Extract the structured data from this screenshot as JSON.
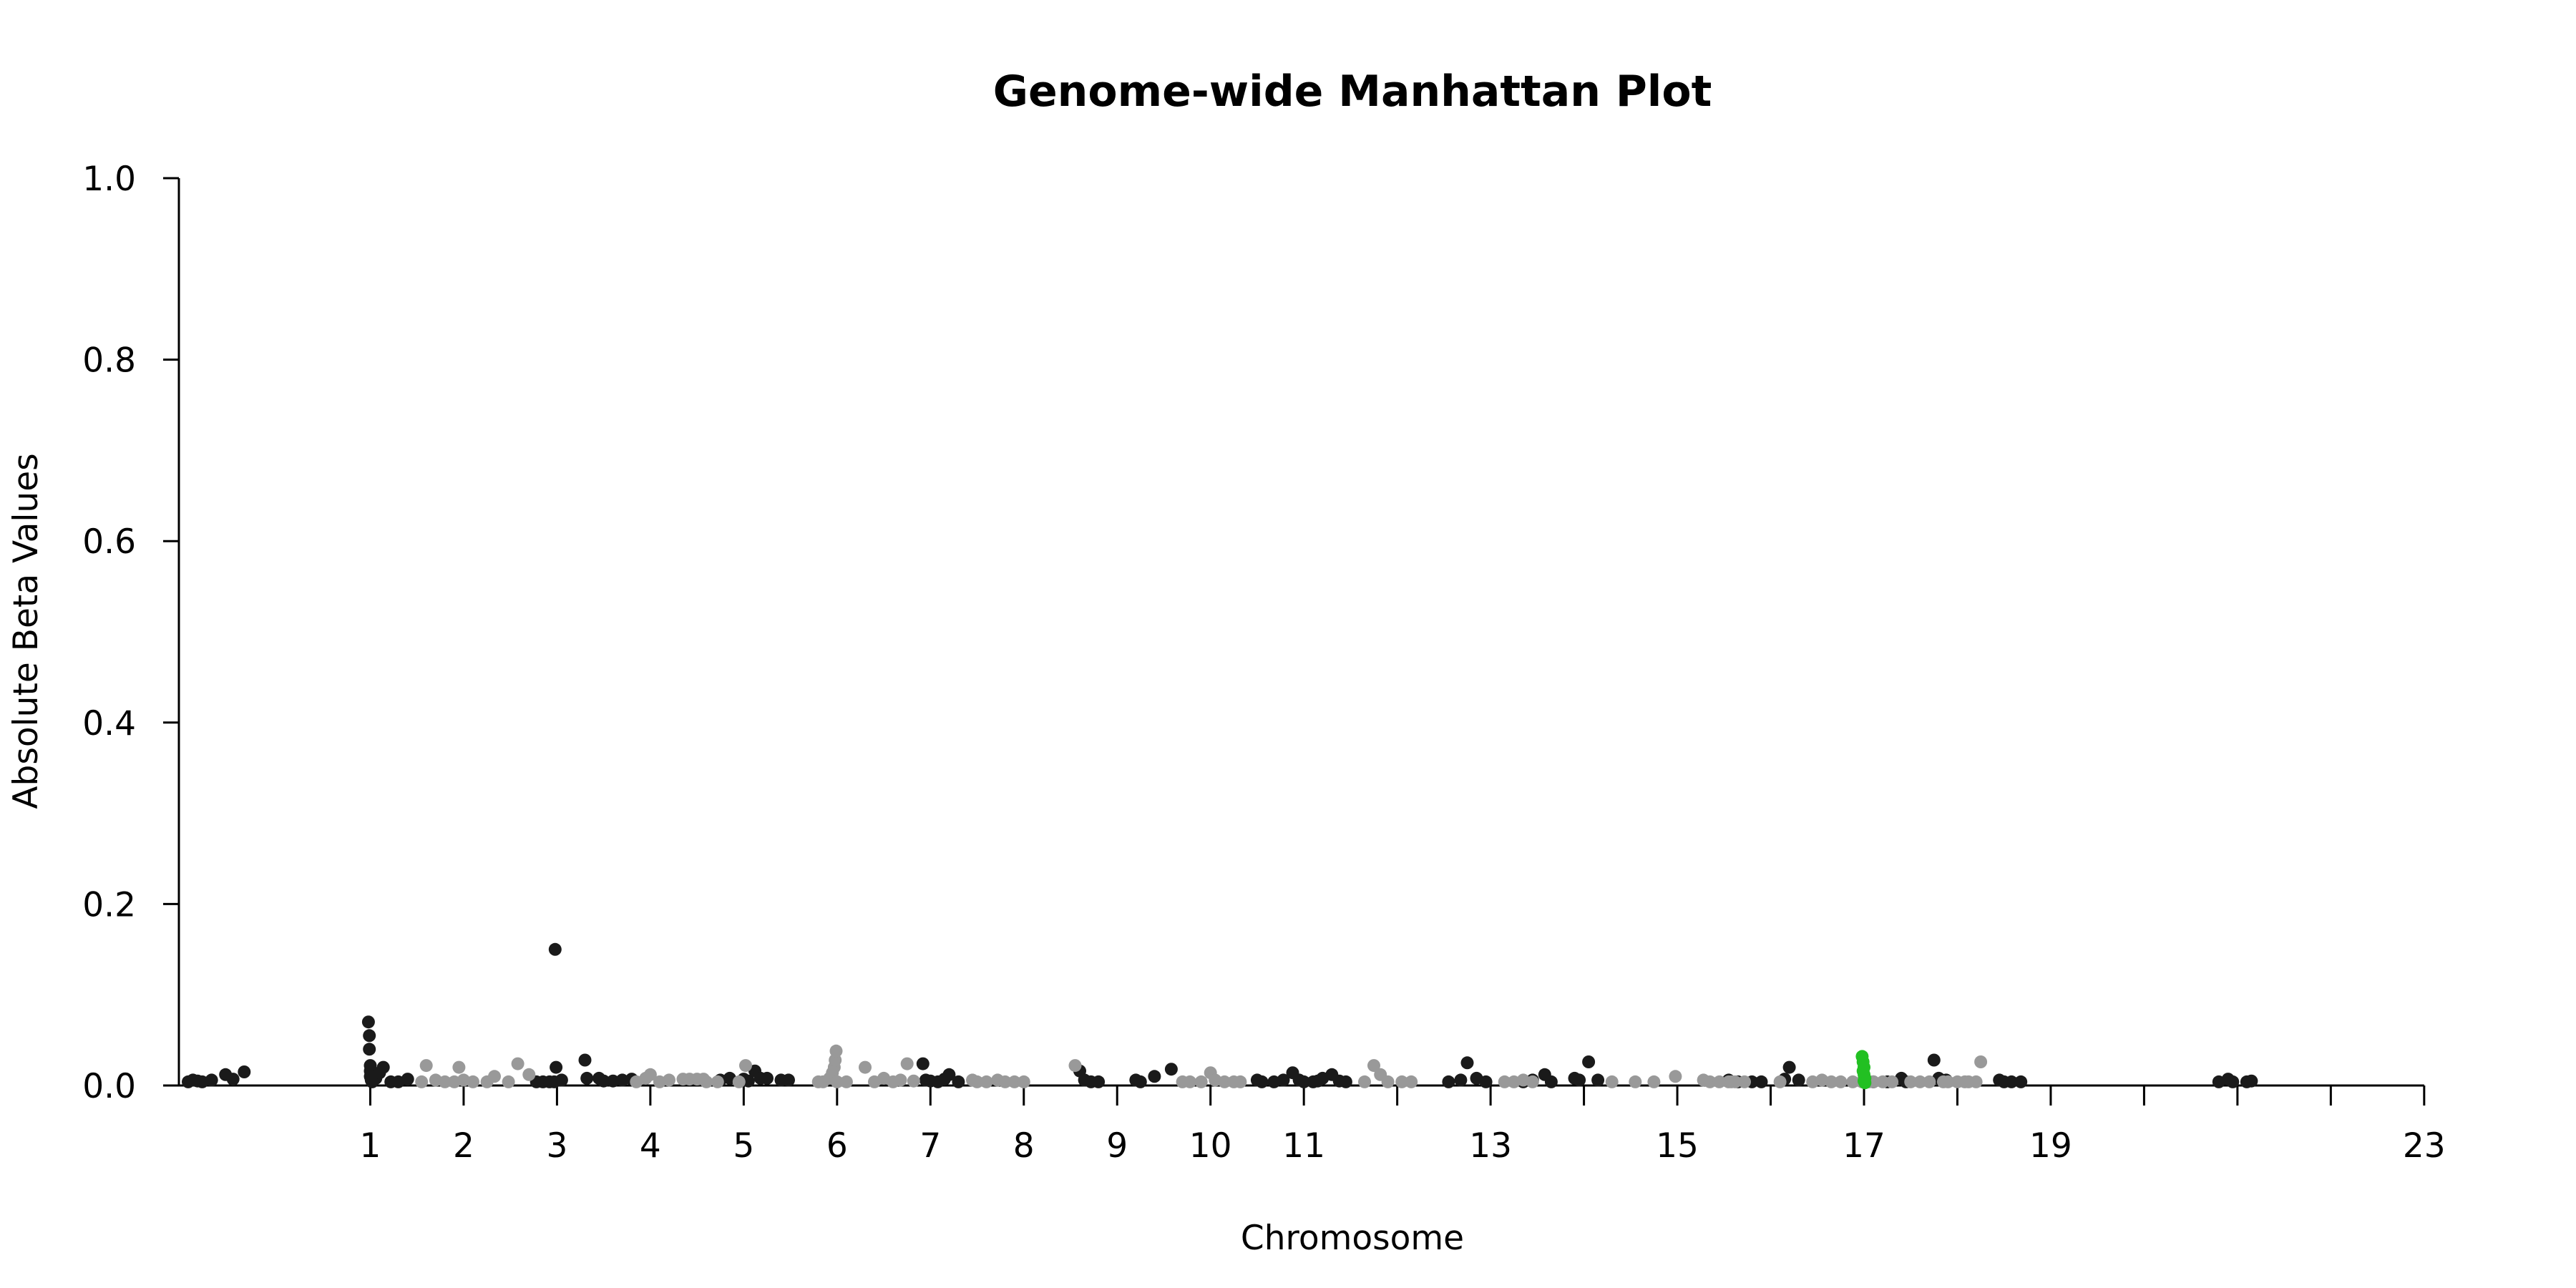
{
  "chart_data": {
    "type": "scatter",
    "title": "Genome-wide Manhattan Plot",
    "xlabel": "Chromosome",
    "ylabel": "Absolute Beta Values",
    "ylim": [
      0,
      1.0
    ],
    "xlim": [
      -1.05,
      23.4
    ],
    "y_ticks": [
      0.0,
      0.2,
      0.4,
      0.6,
      0.8,
      1.0
    ],
    "y_tick_labels": [
      "0.0",
      "0.2",
      "0.4",
      "0.6",
      "0.8",
      "1.0"
    ],
    "x_ticks": [
      {
        "x": 1,
        "label": "1"
      },
      {
        "x": 2,
        "label": "2"
      },
      {
        "x": 3,
        "label": "3"
      },
      {
        "x": 4,
        "label": "4"
      },
      {
        "x": 5,
        "label": "5"
      },
      {
        "x": 6,
        "label": "6"
      },
      {
        "x": 7,
        "label": "7"
      },
      {
        "x": 8,
        "label": "8"
      },
      {
        "x": 9,
        "label": "9"
      },
      {
        "x": 10,
        "label": "10"
      },
      {
        "x": 11,
        "label": "11"
      },
      {
        "x": 12,
        "label": ""
      },
      {
        "x": 13,
        "label": "13"
      },
      {
        "x": 14,
        "label": ""
      },
      {
        "x": 15,
        "label": "15"
      },
      {
        "x": 16,
        "label": ""
      },
      {
        "x": 17,
        "label": "17"
      },
      {
        "x": 18,
        "label": ""
      },
      {
        "x": 19,
        "label": "19"
      },
      {
        "x": 20,
        "label": ""
      },
      {
        "x": 21,
        "label": ""
      },
      {
        "x": 22,
        "label": ""
      },
      {
        "x": 23,
        "label": "23"
      }
    ],
    "grid": false,
    "legend": "none",
    "colors": {
      "dark": "#1a1a1a",
      "light": "#999999",
      "highlight": "#22c022"
    },
    "series": [
      {
        "color": "dark",
        "points": [
          [
            -0.95,
            0.004
          ],
          [
            -0.9,
            0.006
          ],
          [
            -0.85,
            0.005
          ],
          [
            -0.8,
            0.004
          ],
          [
            -0.7,
            0.006
          ],
          [
            -0.55,
            0.012
          ],
          [
            -0.47,
            0.007
          ],
          [
            -0.35,
            0.015
          ],
          [
            0.98,
            0.07
          ],
          [
            0.99,
            0.055
          ],
          [
            0.99,
            0.04
          ],
          [
            1.0,
            0.022
          ],
          [
            1.0,
            0.016
          ],
          [
            1.0,
            0.01
          ],
          [
            1.01,
            0.006
          ],
          [
            1.02,
            0.004
          ],
          [
            1.06,
            0.008
          ],
          [
            1.1,
            0.014
          ],
          [
            1.14,
            0.02
          ],
          [
            1.22,
            0.004
          ],
          [
            1.3,
            0.004
          ],
          [
            1.4,
            0.007
          ],
          [
            2.78,
            0.004
          ],
          [
            2.85,
            0.004
          ],
          [
            2.92,
            0.004
          ],
          [
            2.97,
            0.004
          ],
          [
            2.98,
            0.15
          ],
          [
            2.99,
            0.02
          ],
          [
            3.05,
            0.006
          ],
          [
            3.3,
            0.028
          ],
          [
            3.32,
            0.008
          ],
          [
            3.45,
            0.008
          ],
          [
            3.5,
            0.005
          ],
          [
            3.6,
            0.005
          ],
          [
            3.7,
            0.006
          ],
          [
            3.8,
            0.007
          ],
          [
            4.55,
            0.006
          ],
          [
            4.75,
            0.006
          ],
          [
            4.85,
            0.008
          ],
          [
            5.0,
            0.007
          ],
          [
            5.05,
            0.005
          ],
          [
            5.12,
            0.016
          ],
          [
            5.18,
            0.008
          ],
          [
            5.25,
            0.008
          ],
          [
            5.4,
            0.006
          ],
          [
            5.48,
            0.006
          ],
          [
            6.92,
            0.024
          ],
          [
            6.95,
            0.006
          ],
          [
            7.0,
            0.005
          ],
          [
            7.08,
            0.004
          ],
          [
            7.15,
            0.007
          ],
          [
            7.2,
            0.012
          ],
          [
            7.3,
            0.004
          ],
          [
            8.6,
            0.016
          ],
          [
            8.65,
            0.006
          ],
          [
            8.72,
            0.004
          ],
          [
            8.8,
            0.004
          ],
          [
            9.2,
            0.006
          ],
          [
            9.25,
            0.004
          ],
          [
            9.4,
            0.01
          ],
          [
            9.58,
            0.018
          ],
          [
            10.5,
            0.006
          ],
          [
            10.55,
            0.004
          ],
          [
            10.68,
            0.004
          ],
          [
            10.78,
            0.006
          ],
          [
            10.88,
            0.014
          ],
          [
            10.95,
            0.006
          ],
          [
            11.0,
            0.004
          ],
          [
            11.1,
            0.004
          ],
          [
            11.15,
            0.005
          ],
          [
            11.2,
            0.008
          ],
          [
            11.3,
            0.012
          ],
          [
            11.38,
            0.005
          ],
          [
            11.45,
            0.004
          ],
          [
            12.55,
            0.004
          ],
          [
            12.68,
            0.006
          ],
          [
            12.75,
            0.025
          ],
          [
            12.85,
            0.008
          ],
          [
            12.95,
            0.004
          ],
          [
            13.35,
            0.004
          ],
          [
            13.45,
            0.006
          ],
          [
            13.58,
            0.012
          ],
          [
            13.65,
            0.004
          ],
          [
            13.9,
            0.008
          ],
          [
            13.95,
            0.006
          ],
          [
            14.05,
            0.026
          ],
          [
            14.15,
            0.006
          ],
          [
            15.55,
            0.006
          ],
          [
            15.65,
            0.004
          ],
          [
            15.8,
            0.004
          ],
          [
            15.9,
            0.004
          ],
          [
            16.15,
            0.007
          ],
          [
            16.2,
            0.02
          ],
          [
            16.3,
            0.006
          ],
          [
            17.1,
            0.004
          ],
          [
            17.25,
            0.004
          ],
          [
            17.4,
            0.008
          ],
          [
            17.45,
            0.004
          ],
          [
            17.75,
            0.028
          ],
          [
            17.8,
            0.008
          ],
          [
            17.88,
            0.006
          ],
          [
            18.45,
            0.006
          ],
          [
            18.5,
            0.004
          ],
          [
            18.58,
            0.004
          ],
          [
            18.68,
            0.004
          ],
          [
            20.8,
            0.004
          ],
          [
            20.9,
            0.007
          ],
          [
            20.95,
            0.004
          ],
          [
            21.1,
            0.004
          ],
          [
            21.15,
            0.005
          ]
        ]
      },
      {
        "color": "light",
        "points": [
          [
            1.55,
            0.004
          ],
          [
            1.6,
            0.022
          ],
          [
            1.7,
            0.006
          ],
          [
            1.8,
            0.004
          ],
          [
            1.9,
            0.004
          ],
          [
            1.95,
            0.02
          ],
          [
            2.0,
            0.006
          ],
          [
            2.1,
            0.004
          ],
          [
            2.25,
            0.004
          ],
          [
            2.33,
            0.01
          ],
          [
            2.48,
            0.004
          ],
          [
            2.58,
            0.024
          ],
          [
            2.7,
            0.012
          ],
          [
            3.85,
            0.004
          ],
          [
            3.95,
            0.008
          ],
          [
            4.0,
            0.012
          ],
          [
            4.1,
            0.004
          ],
          [
            4.2,
            0.006
          ],
          [
            4.35,
            0.007
          ],
          [
            4.42,
            0.007
          ],
          [
            4.5,
            0.007
          ],
          [
            4.57,
            0.007
          ],
          [
            4.6,
            0.004
          ],
          [
            4.72,
            0.004
          ],
          [
            4.95,
            0.004
          ],
          [
            5.02,
            0.022
          ],
          [
            5.8,
            0.004
          ],
          [
            5.85,
            0.004
          ],
          [
            5.92,
            0.008
          ],
          [
            5.95,
            0.014
          ],
          [
            5.97,
            0.02
          ],
          [
            5.98,
            0.028
          ],
          [
            5.99,
            0.038
          ],
          [
            6.0,
            0.004
          ],
          [
            6.1,
            0.004
          ],
          [
            6.3,
            0.02
          ],
          [
            6.4,
            0.004
          ],
          [
            6.5,
            0.008
          ],
          [
            6.6,
            0.004
          ],
          [
            6.68,
            0.006
          ],
          [
            6.75,
            0.024
          ],
          [
            6.82,
            0.005
          ],
          [
            7.45,
            0.006
          ],
          [
            7.5,
            0.004
          ],
          [
            7.6,
            0.004
          ],
          [
            7.72,
            0.006
          ],
          [
            7.8,
            0.004
          ],
          [
            7.9,
            0.004
          ],
          [
            8.0,
            0.004
          ],
          [
            8.55,
            0.022
          ],
          [
            9.7,
            0.004
          ],
          [
            9.78,
            0.004
          ],
          [
            9.9,
            0.004
          ],
          [
            10.0,
            0.014
          ],
          [
            10.05,
            0.006
          ],
          [
            10.15,
            0.004
          ],
          [
            10.25,
            0.004
          ],
          [
            10.32,
            0.004
          ],
          [
            11.65,
            0.004
          ],
          [
            11.75,
            0.022
          ],
          [
            11.82,
            0.012
          ],
          [
            11.9,
            0.004
          ],
          [
            12.05,
            0.004
          ],
          [
            12.15,
            0.004
          ],
          [
            13.15,
            0.004
          ],
          [
            13.25,
            0.004
          ],
          [
            13.35,
            0.006
          ],
          [
            13.45,
            0.004
          ],
          [
            14.3,
            0.004
          ],
          [
            14.55,
            0.004
          ],
          [
            14.75,
            0.004
          ],
          [
            14.98,
            0.01
          ],
          [
            15.28,
            0.006
          ],
          [
            15.35,
            0.004
          ],
          [
            15.45,
            0.004
          ],
          [
            15.55,
            0.004
          ],
          [
            15.58,
            0.004
          ],
          [
            15.62,
            0.004
          ],
          [
            15.72,
            0.004
          ],
          [
            16.1,
            0.004
          ],
          [
            16.45,
            0.004
          ],
          [
            16.55,
            0.006
          ],
          [
            16.65,
            0.004
          ],
          [
            16.75,
            0.004
          ],
          [
            16.88,
            0.004
          ],
          [
            16.98,
            0.004
          ],
          [
            17.05,
            0.004
          ],
          [
            17.1,
            0.004
          ],
          [
            17.2,
            0.004
          ],
          [
            17.3,
            0.004
          ],
          [
            17.5,
            0.004
          ],
          [
            17.6,
            0.004
          ],
          [
            17.7,
            0.004
          ],
          [
            17.85,
            0.004
          ],
          [
            17.9,
            0.004
          ],
          [
            18.0,
            0.004
          ],
          [
            18.08,
            0.004
          ],
          [
            18.12,
            0.004
          ],
          [
            18.2,
            0.004
          ],
          [
            18.25,
            0.026
          ]
        ]
      },
      {
        "color": "highlight",
        "points": [
          [
            16.98,
            0.032
          ],
          [
            16.99,
            0.026
          ],
          [
            17.0,
            0.02
          ],
          [
            16.99,
            0.016
          ],
          [
            17.0,
            0.012
          ],
          [
            17.01,
            0.008
          ],
          [
            17.0,
            0.005
          ],
          [
            17.01,
            0.003
          ]
        ]
      }
    ]
  }
}
